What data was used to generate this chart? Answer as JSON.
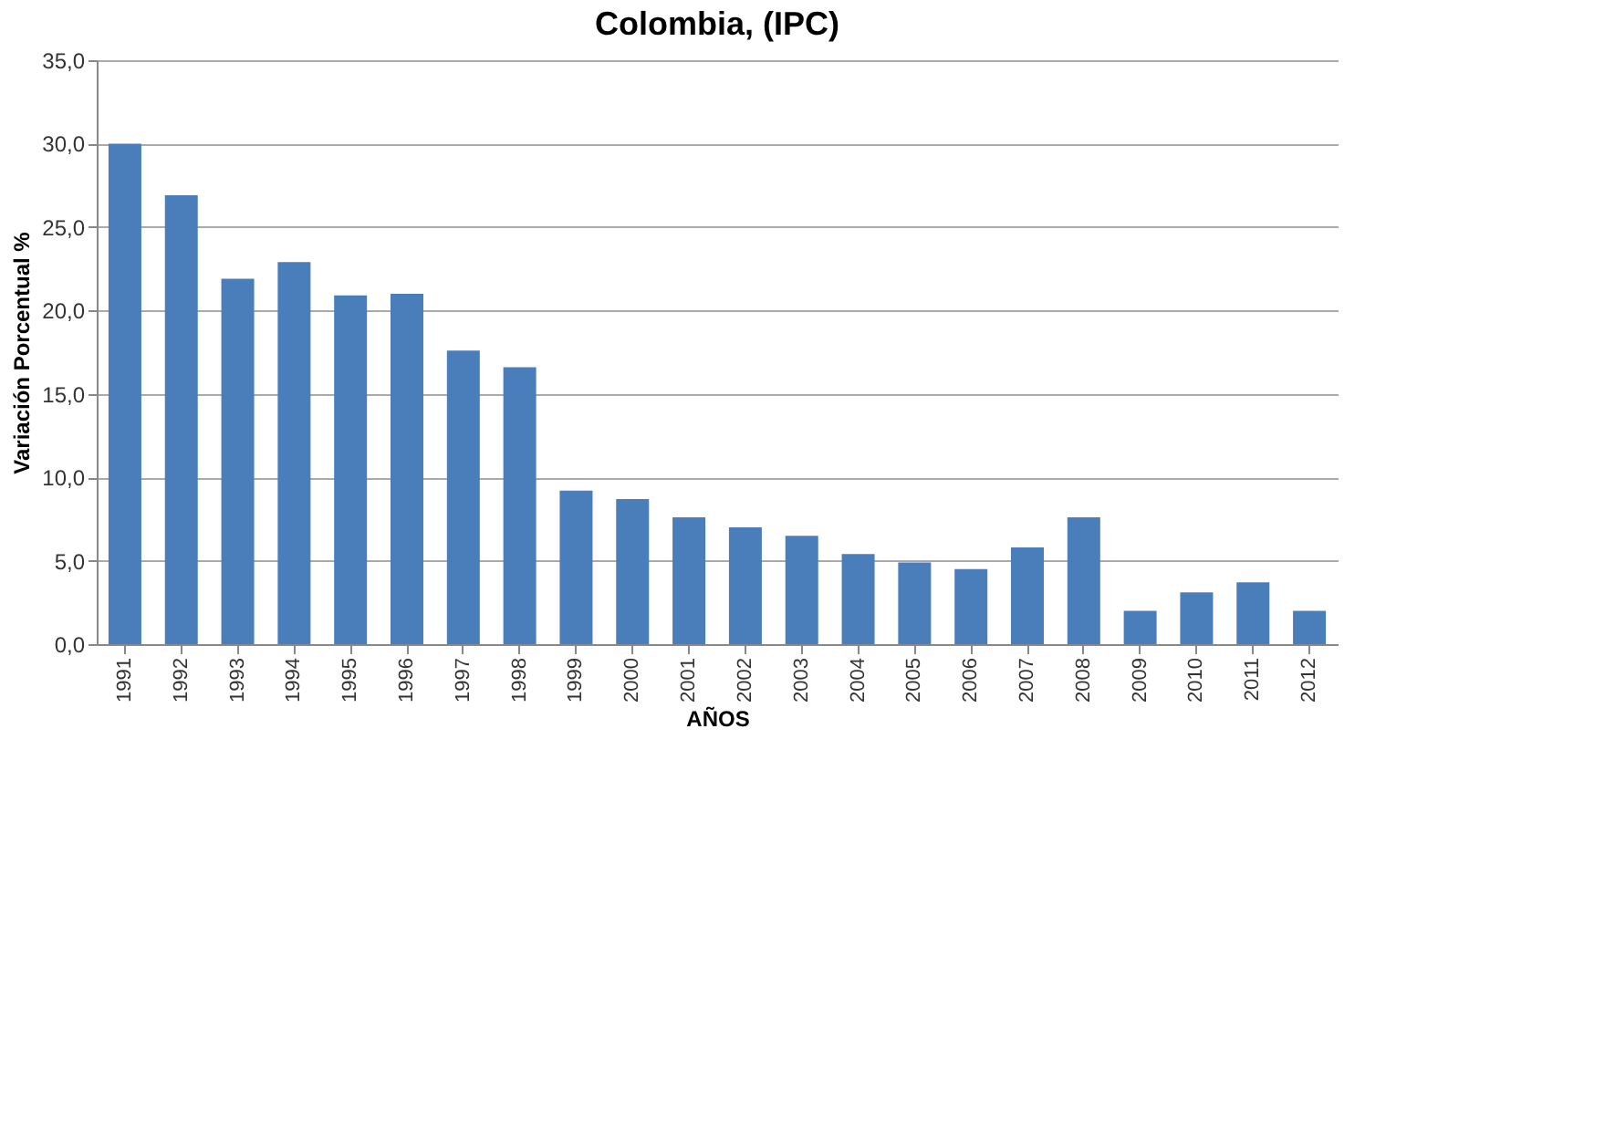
{
  "chart_data": {
    "type": "bar",
    "title": "Colombia, (IPC)",
    "xlabel": "AÑOS",
    "ylabel": "Variación Porcentual %",
    "categories": [
      "1991",
      "1992",
      "1993",
      "1994",
      "1995",
      "1996",
      "1997",
      "1998",
      "1999",
      "2000",
      "2001",
      "2002",
      "2003",
      "2004",
      "2005",
      "2006",
      "2007",
      "2008",
      "2009",
      "2010",
      "2011",
      "2012"
    ],
    "values": [
      30.0,
      26.9,
      21.9,
      22.9,
      20.9,
      21.0,
      17.6,
      16.6,
      9.2,
      8.7,
      7.6,
      7.0,
      6.5,
      5.4,
      4.9,
      4.5,
      5.8,
      7.6,
      2.0,
      3.1,
      3.7,
      2.0
    ],
    "color": "#4a7ebb",
    "ylim": [
      0,
      35
    ],
    "yticks": [
      {
        "value": 0,
        "label": "0,0"
      },
      {
        "value": 5,
        "label": "5,0"
      },
      {
        "value": 10,
        "label": "10,0"
      },
      {
        "value": 15,
        "label": "15,0"
      },
      {
        "value": 20,
        "label": "20,0"
      },
      {
        "value": 25,
        "label": "25,0"
      },
      {
        "value": 30,
        "label": "30,0"
      },
      {
        "value": 35,
        "label": "35,0"
      }
    ],
    "grid": "y"
  }
}
